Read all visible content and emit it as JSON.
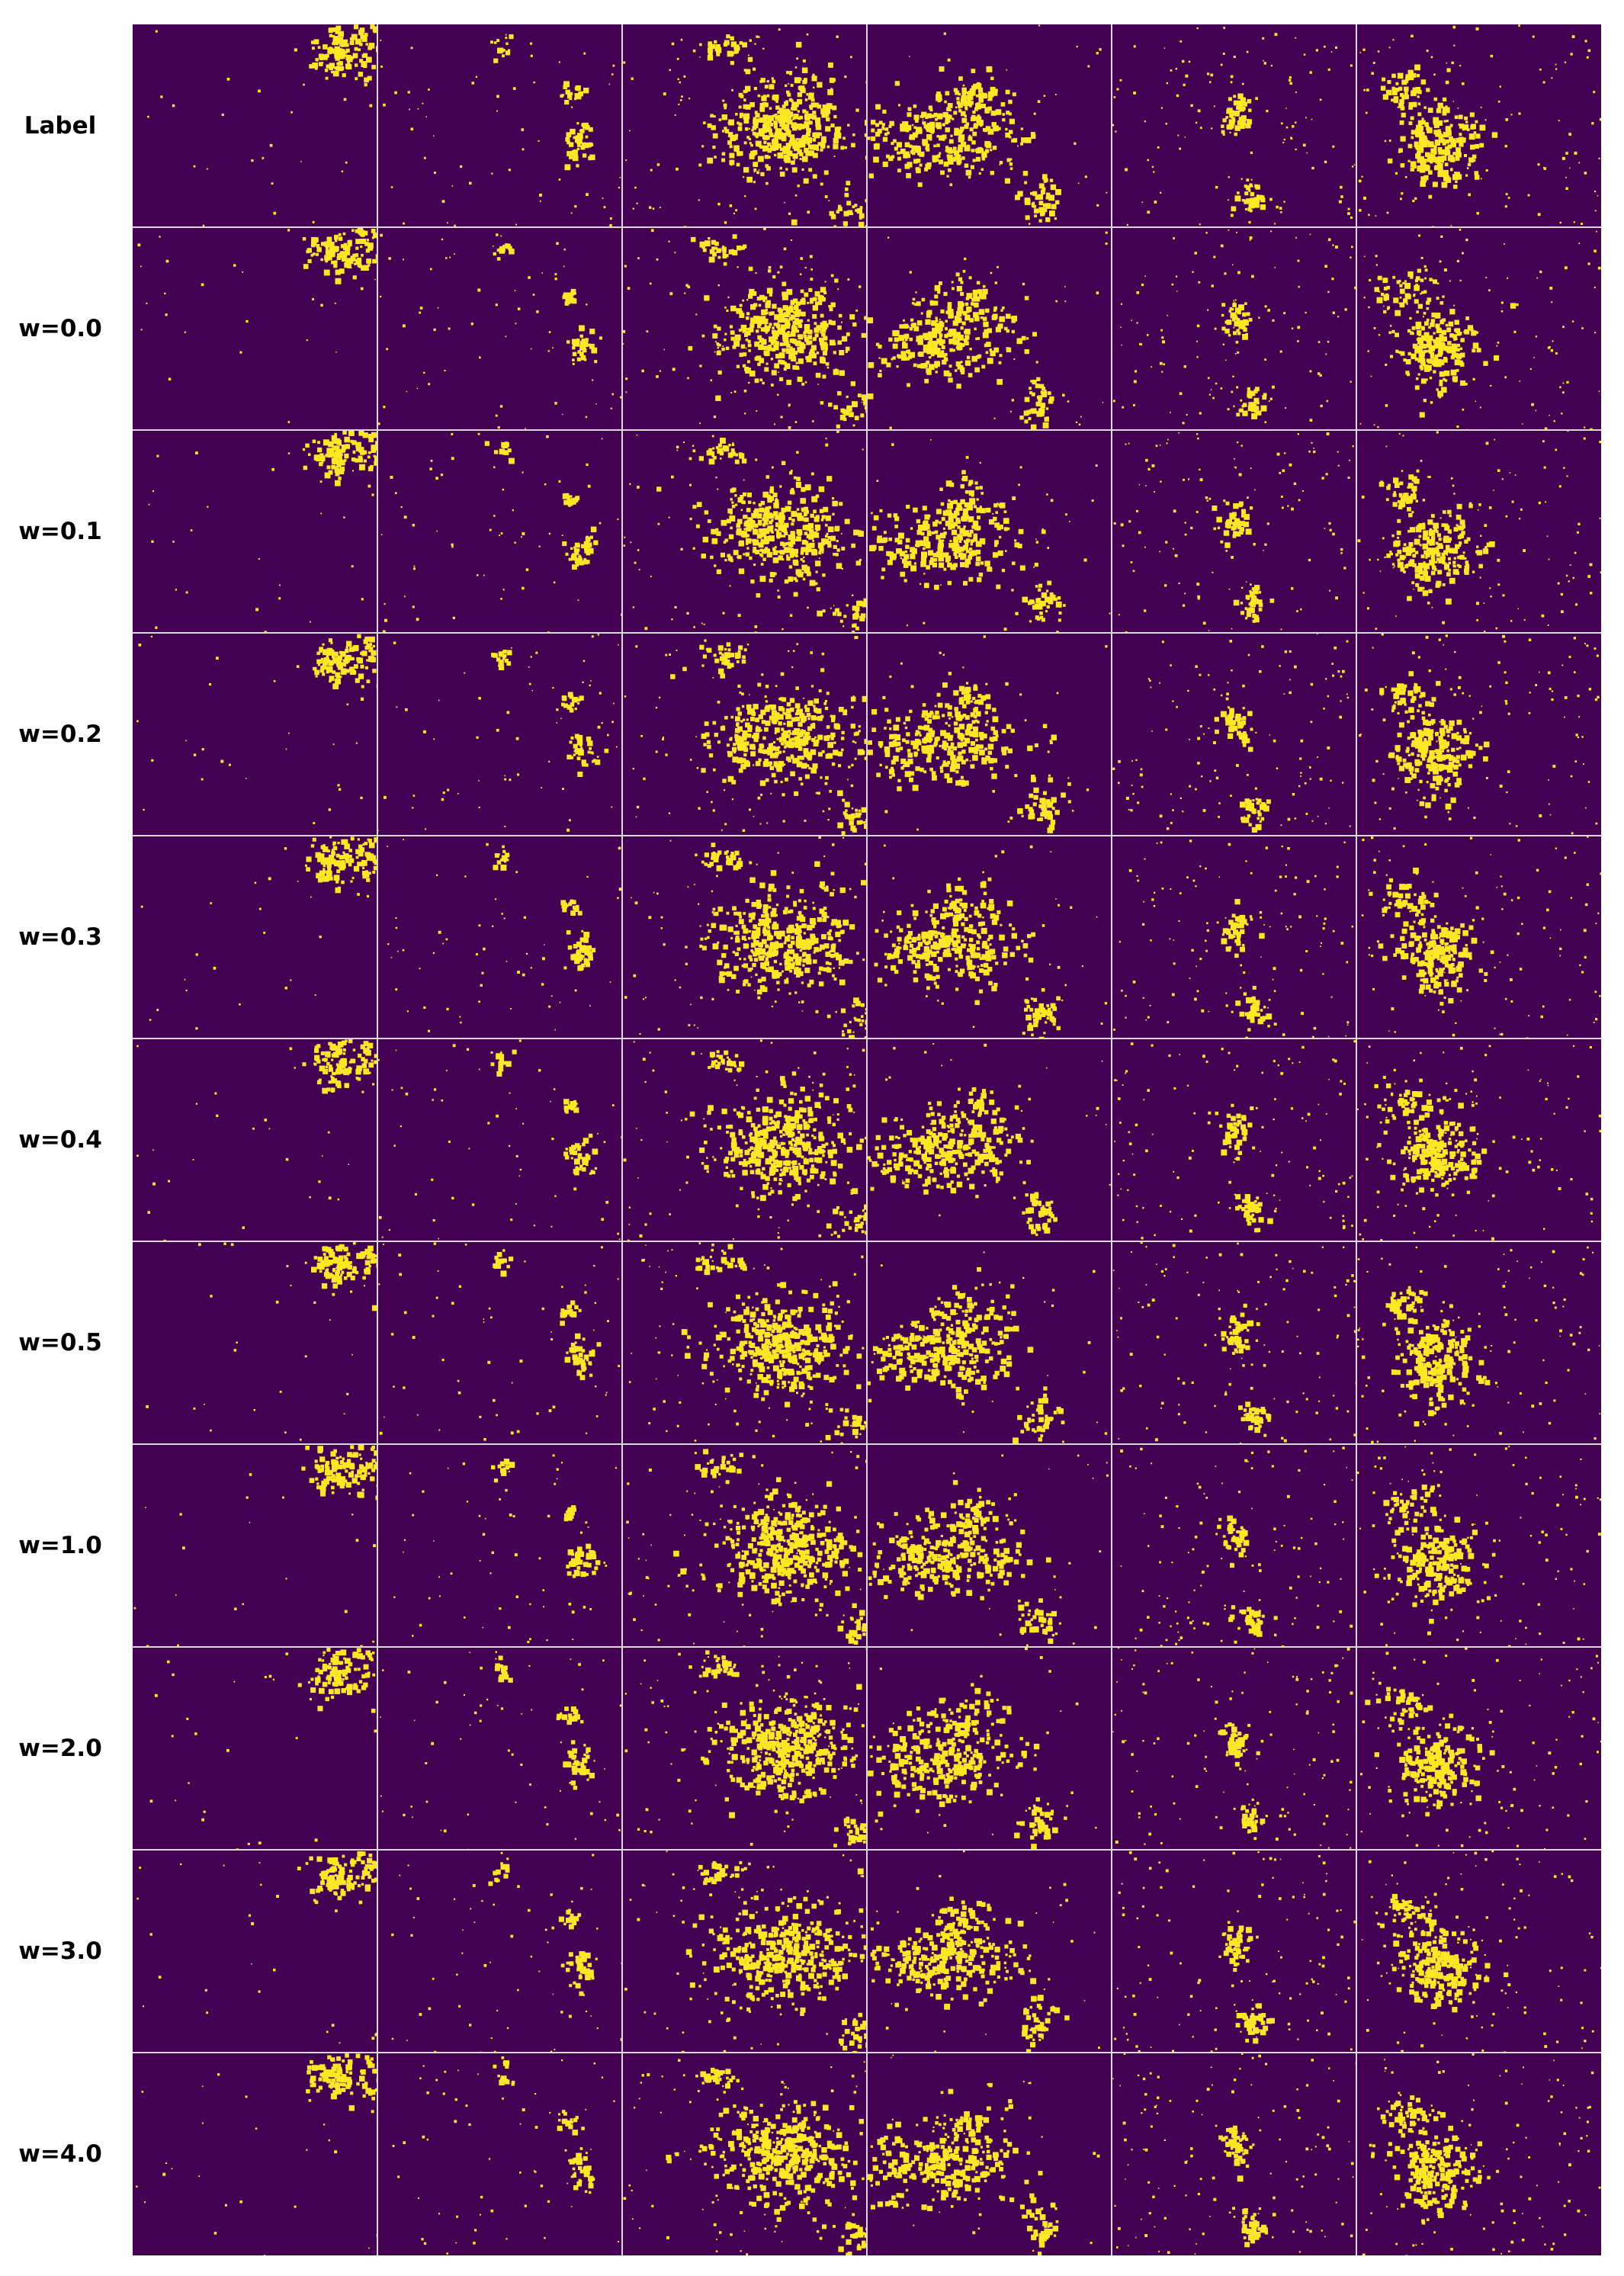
{
  "figure": {
    "row_labels": [
      "Label",
      "w=0.0",
      "w=0.1",
      "w=0.2",
      "w=0.3",
      "w=0.4",
      "w=0.5",
      "w=1.0",
      "w=2.0",
      "w=3.0",
      "w=4.0"
    ],
    "column_count": 6,
    "colors": {
      "background_class": "#440154",
      "foreground_class": "#fde725",
      "separator": "#d9d9d9",
      "page": "#ffffff"
    }
  }
}
